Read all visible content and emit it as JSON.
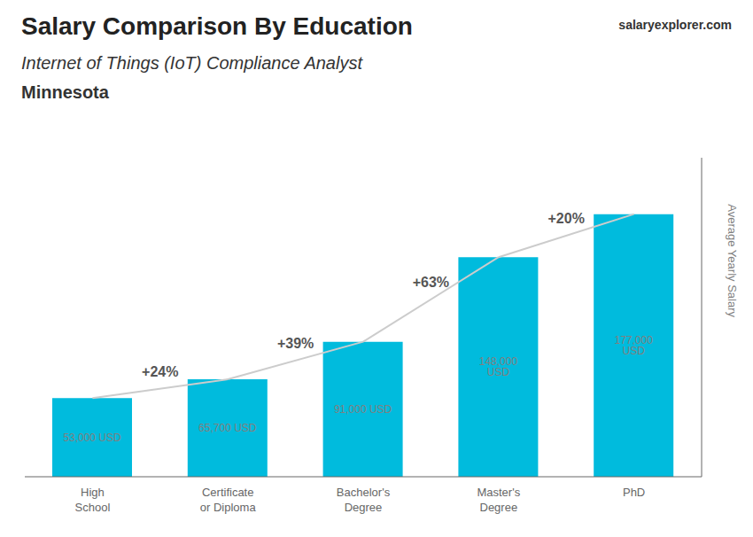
{
  "chart_data": {
    "type": "bar",
    "title": "Salary Comparison By Education",
    "subtitle": "Internet of Things (IoT) Compliance Analyst",
    "annotations": [
      "Minnesota",
      "salaryexplorer.com"
    ],
    "ylabel": "Average Yearly Salary",
    "categories": [
      "High\nSchool",
      "Certificate\nor Diploma",
      "Bachelor's\nDegree",
      "Master's\nDegree",
      "PhD"
    ],
    "values": [
      53000,
      65700,
      91000,
      148000,
      177000
    ],
    "value_labels": [
      "53,000 USD",
      "65,700 USD",
      "91,000 USD",
      "148,000 USD",
      "177,000 USD"
    ],
    "data_labels": true,
    "pct_labels": [
      "+24%",
      "+39%",
      "+63%",
      "+20%"
    ],
    "color": "#00bbdd",
    "ylim": [
      0,
      215000
    ],
    "grid": false,
    "tick_labels": "x"
  }
}
